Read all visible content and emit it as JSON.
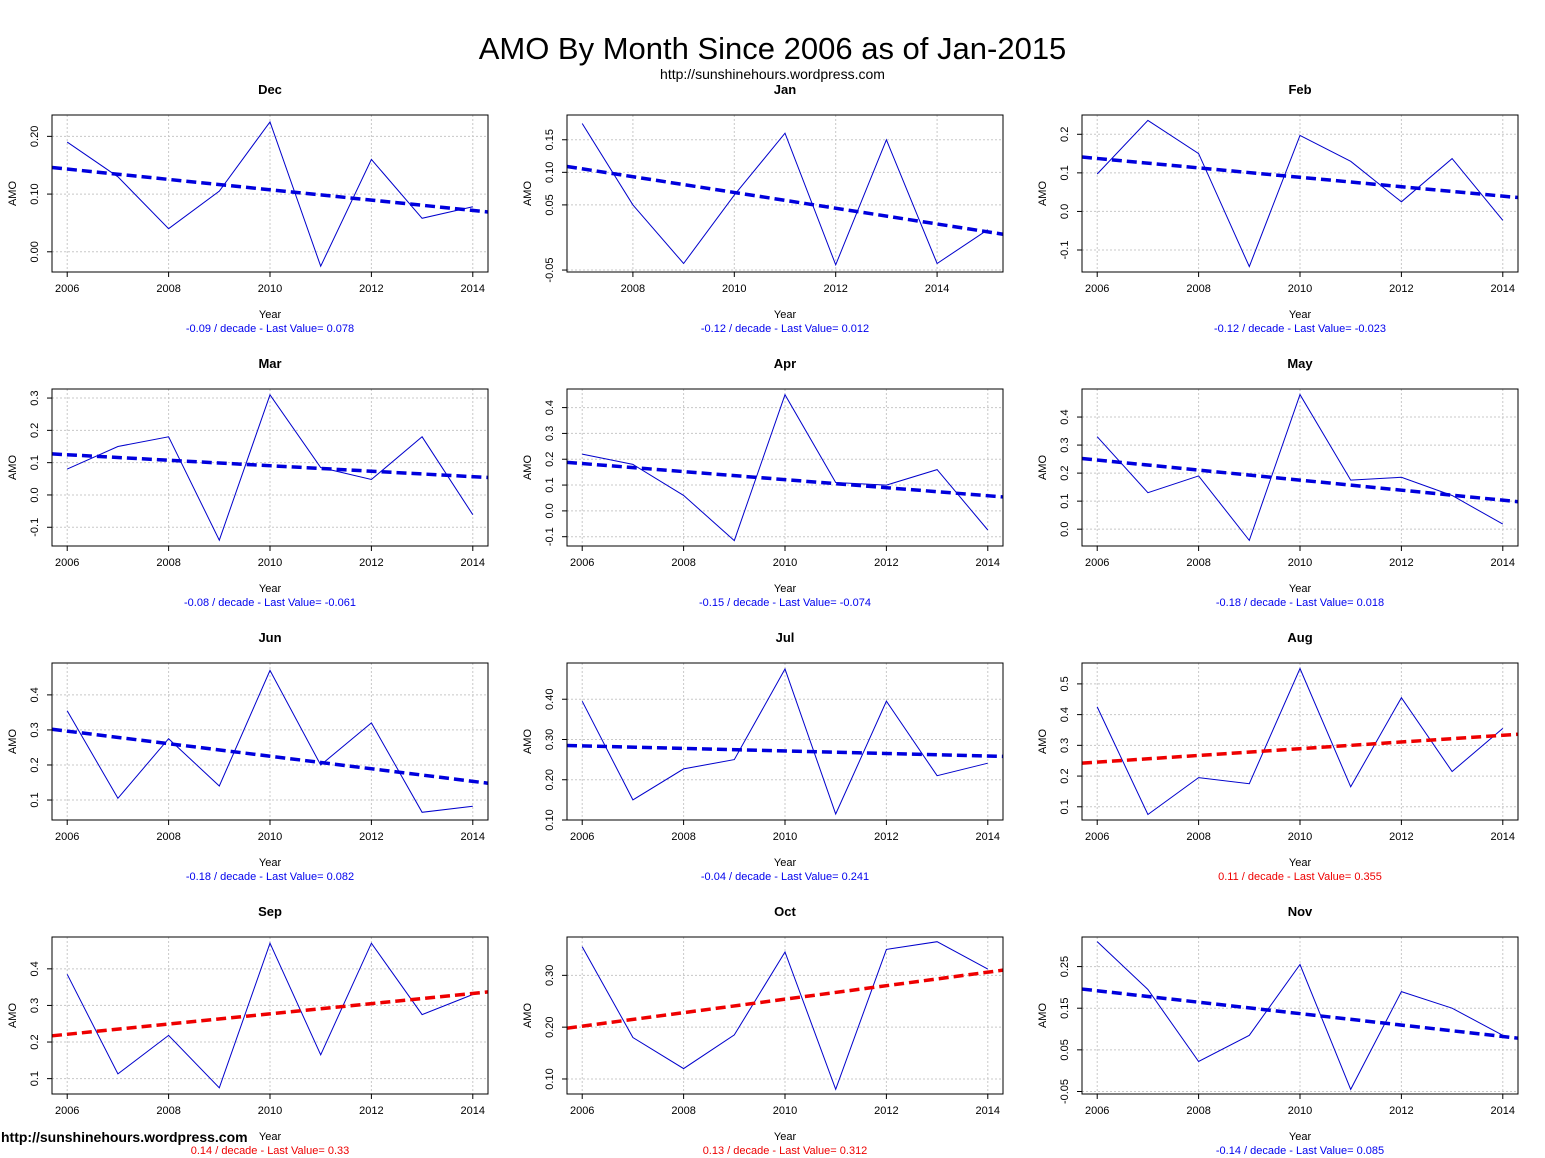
{
  "title": "AMO By Month Since 2006 as of Jan-2015",
  "subtitle": "http://sunshinehours.wordpress.com",
  "watermark": "http://sunshinehours.wordpress.com",
  "colors": {
    "series": "#0000cc",
    "trend_down": "#0000dd",
    "trend_up": "#ee0000",
    "grid": "#c8c8c8",
    "caption_down": "#0000ee",
    "caption_up": "#ee0000"
  },
  "chart_data": [
    {
      "type": "line",
      "title": "Dec",
      "xlabel": "Year",
      "ylabel": "AMO",
      "x": [
        2006,
        2007,
        2008,
        2009,
        2010,
        2011,
        2012,
        2013,
        2014
      ],
      "y": [
        0.19,
        0.13,
        0.04,
        0.105,
        0.225,
        -0.025,
        0.16,
        0.058,
        0.078
      ],
      "trend": {
        "x": [
          2005.7,
          2014.3
        ],
        "y": [
          0.146,
          0.069
        ],
        "color": "down"
      },
      "xlim": [
        2005.7,
        2014.3
      ],
      "ylim": [
        -0.035,
        0.237
      ],
      "xticks": [
        2006,
        2008,
        2010,
        2012,
        2014
      ],
      "xtick_labels": [
        "2006",
        "2008",
        "2010",
        "2012",
        "2014"
      ],
      "yticks": [
        0.0,
        0.1,
        0.2
      ],
      "ytick_labels": [
        "0.00",
        "0.10",
        "0.20"
      ],
      "grid": true,
      "caption": "-0.09  / decade  - Last Value= 0.078",
      "caption_color": "down"
    },
    {
      "type": "line",
      "title": "Jan",
      "xlabel": "Year",
      "ylabel": "AMO",
      "x": [
        2007,
        2008,
        2009,
        2010,
        2011,
        2012,
        2013,
        2014,
        2015
      ],
      "y": [
        0.175,
        0.05,
        -0.04,
        0.065,
        0.16,
        -0.042,
        0.15,
        -0.04,
        0.012
      ],
      "trend": {
        "x": [
          2006.7,
          2015.3
        ],
        "y": [
          0.109,
          0.005
        ],
        "color": "down"
      },
      "xlim": [
        2006.7,
        2015.3
      ],
      "ylim": [
        -0.053,
        0.188
      ],
      "xticks": [
        2008,
        2010,
        2012,
        2014
      ],
      "xtick_labels": [
        "2008",
        "2010",
        "2012",
        "2014"
      ],
      "yticks": [
        -0.05,
        0.05,
        0.1,
        0.15
      ],
      "ytick_labels": [
        "-0.05",
        "0.05",
        "0.10",
        "0.15"
      ],
      "grid": true,
      "caption": "-0.12  / decade  - Last Value= 0.012",
      "caption_color": "down"
    },
    {
      "type": "line",
      "title": "Feb",
      "xlabel": "Year",
      "ylabel": "AMO",
      "x": [
        2006,
        2007,
        2008,
        2009,
        2010,
        2011,
        2012,
        2013,
        2014
      ],
      "y": [
        0.097,
        0.236,
        0.15,
        -0.143,
        0.197,
        0.13,
        0.025,
        0.137,
        -0.023
      ],
      "trend": {
        "x": [
          2005.7,
          2014.3
        ],
        "y": [
          0.141,
          0.036
        ],
        "color": "down"
      },
      "xlim": [
        2005.7,
        2014.3
      ],
      "ylim": [
        -0.157,
        0.25
      ],
      "xticks": [
        2006,
        2008,
        2010,
        2012,
        2014
      ],
      "xtick_labels": [
        "2006",
        "2008",
        "2010",
        "2012",
        "2014"
      ],
      "yticks": [
        -0.1,
        0.0,
        0.1,
        0.2
      ],
      "ytick_labels": [
        "-0.1",
        "0.0",
        "0.1",
        "0.2"
      ],
      "grid": true,
      "caption": "-0.12  / decade  - Last Value= -0.023",
      "caption_color": "down"
    },
    {
      "type": "line",
      "title": "Mar",
      "xlabel": "Year",
      "ylabel": "AMO",
      "x": [
        2006,
        2007,
        2008,
        2009,
        2010,
        2011,
        2012,
        2013,
        2014
      ],
      "y": [
        0.08,
        0.15,
        0.18,
        -0.14,
        0.31,
        0.085,
        0.048,
        0.18,
        -0.061
      ],
      "trend": {
        "x": [
          2005.7,
          2014.3
        ],
        "y": [
          0.127,
          0.054
        ],
        "color": "down"
      },
      "xlim": [
        2005.7,
        2014.3
      ],
      "ylim": [
        -0.158,
        0.328
      ],
      "xticks": [
        2006,
        2008,
        2010,
        2012,
        2014
      ],
      "xtick_labels": [
        "2006",
        "2008",
        "2010",
        "2012",
        "2014"
      ],
      "yticks": [
        -0.1,
        0.0,
        0.1,
        0.2,
        0.3
      ],
      "ytick_labels": [
        "-0.1",
        "0.0",
        "0.1",
        "0.2",
        "0.3"
      ],
      "grid": true,
      "caption": "-0.08  / decade  - Last Value= -0.061",
      "caption_color": "down"
    },
    {
      "type": "line",
      "title": "Apr",
      "xlabel": "Year",
      "ylabel": "AMO",
      "x": [
        2006,
        2007,
        2008,
        2009,
        2010,
        2011,
        2012,
        2013,
        2014
      ],
      "y": [
        0.22,
        0.18,
        0.06,
        -0.115,
        0.45,
        0.11,
        0.1,
        0.16,
        -0.074
      ],
      "trend": {
        "x": [
          2005.7,
          2014.3
        ],
        "y": [
          0.188,
          0.054
        ],
        "color": "down"
      },
      "xlim": [
        2005.7,
        2014.3
      ],
      "ylim": [
        -0.136,
        0.472
      ],
      "xticks": [
        2006,
        2008,
        2010,
        2012,
        2014
      ],
      "xtick_labels": [
        "2006",
        "2008",
        "2010",
        "2012",
        "2014"
      ],
      "yticks": [
        -0.1,
        0.0,
        0.1,
        0.2,
        0.3,
        0.4
      ],
      "ytick_labels": [
        "-0.1",
        "0.0",
        "0.1",
        "0.2",
        "0.3",
        "0.4"
      ],
      "grid": true,
      "caption": "-0.15  / decade  - Last Value= -0.074",
      "caption_color": "down"
    },
    {
      "type": "line",
      "title": "May",
      "xlabel": "Year",
      "ylabel": "AMO",
      "x": [
        2006,
        2007,
        2008,
        2009,
        2010,
        2011,
        2012,
        2013,
        2014
      ],
      "y": [
        0.33,
        0.13,
        0.19,
        -0.04,
        0.48,
        0.175,
        0.185,
        0.12,
        0.018
      ],
      "trend": {
        "x": [
          2005.7,
          2014.3
        ],
        "y": [
          0.252,
          0.098
        ],
        "color": "down"
      },
      "xlim": [
        2005.7,
        2014.3
      ],
      "ylim": [
        -0.06,
        0.5
      ],
      "xticks": [
        2006,
        2008,
        2010,
        2012,
        2014
      ],
      "xtick_labels": [
        "2006",
        "2008",
        "2010",
        "2012",
        "2014"
      ],
      "yticks": [
        0.0,
        0.1,
        0.2,
        0.3,
        0.4
      ],
      "ytick_labels": [
        "0.0",
        "0.1",
        "0.2",
        "0.3",
        "0.4"
      ],
      "grid": true,
      "caption": "-0.18  / decade  - Last Value= 0.018",
      "caption_color": "down"
    },
    {
      "type": "line",
      "title": "Jun",
      "xlabel": "Year",
      "ylabel": "AMO",
      "x": [
        2006,
        2007,
        2008,
        2009,
        2010,
        2011,
        2012,
        2013,
        2014
      ],
      "y": [
        0.355,
        0.105,
        0.275,
        0.14,
        0.47,
        0.2,
        0.32,
        0.065,
        0.082
      ],
      "trend": {
        "x": [
          2005.7,
          2014.3
        ],
        "y": [
          0.302,
          0.148
        ],
        "color": "down"
      },
      "xlim": [
        2005.7,
        2014.3
      ],
      "ylim": [
        0.043,
        0.491
      ],
      "xticks": [
        2006,
        2008,
        2010,
        2012,
        2014
      ],
      "xtick_labels": [
        "2006",
        "2008",
        "2010",
        "2012",
        "2014"
      ],
      "yticks": [
        0.1,
        0.2,
        0.3,
        0.4
      ],
      "ytick_labels": [
        "0.1",
        "0.2",
        "0.3",
        "0.4"
      ],
      "grid": true,
      "caption": "-0.18  / decade  - Last Value= 0.082",
      "caption_color": "down"
    },
    {
      "type": "line",
      "title": "Jul",
      "xlabel": "Year",
      "ylabel": "AMO",
      "x": [
        2006,
        2007,
        2008,
        2009,
        2010,
        2011,
        2012,
        2013,
        2014
      ],
      "y": [
        0.395,
        0.15,
        0.227,
        0.25,
        0.475,
        0.115,
        0.395,
        0.21,
        0.241
      ],
      "trend": {
        "x": [
          2005.7,
          2014.3
        ],
        "y": [
          0.285,
          0.258
        ],
        "color": "down"
      },
      "xlim": [
        2005.7,
        2014.3
      ],
      "ylim": [
        0.1,
        0.49
      ],
      "xticks": [
        2006,
        2008,
        2010,
        2012,
        2014
      ],
      "xtick_labels": [
        "2006",
        "2008",
        "2010",
        "2012",
        "2014"
      ],
      "yticks": [
        0.1,
        0.2,
        0.3,
        0.4
      ],
      "ytick_labels": [
        "0.10",
        "0.20",
        "0.30",
        "0.40"
      ],
      "grid": true,
      "caption": "-0.04  / decade  - Last Value= 0.241",
      "caption_color": "down"
    },
    {
      "type": "line",
      "title": "Aug",
      "xlabel": "Year",
      "ylabel": "AMO",
      "x": [
        2006,
        2007,
        2008,
        2009,
        2010,
        2011,
        2012,
        2013,
        2014
      ],
      "y": [
        0.425,
        0.075,
        0.195,
        0.175,
        0.55,
        0.165,
        0.455,
        0.215,
        0.355
      ],
      "trend": {
        "x": [
          2005.7,
          2014.3
        ],
        "y": [
          0.242,
          0.336
        ],
        "color": "up"
      },
      "xlim": [
        2005.7,
        2014.3
      ],
      "ylim": [
        0.057,
        0.568
      ],
      "xticks": [
        2006,
        2008,
        2010,
        2012,
        2014
      ],
      "xtick_labels": [
        "2006",
        "2008",
        "2010",
        "2012",
        "2014"
      ],
      "yticks": [
        0.1,
        0.2,
        0.3,
        0.4,
        0.5
      ],
      "ytick_labels": [
        "0.1",
        "0.2",
        "0.3",
        "0.4",
        "0.5"
      ],
      "grid": true,
      "caption": "0.11  / decade  - Last Value= 0.355",
      "caption_color": "up"
    },
    {
      "type": "line",
      "title": "Sep",
      "xlabel": "Year",
      "ylabel": "AMO",
      "x": [
        2006,
        2007,
        2008,
        2009,
        2010,
        2011,
        2012,
        2013,
        2014
      ],
      "y": [
        0.385,
        0.113,
        0.218,
        0.075,
        0.47,
        0.165,
        0.47,
        0.275,
        0.33
      ],
      "trend": {
        "x": [
          2005.7,
          2014.3
        ],
        "y": [
          0.217,
          0.337
        ],
        "color": "up"
      },
      "xlim": [
        2005.7,
        2014.3
      ],
      "ylim": [
        0.058,
        0.487
      ],
      "xticks": [
        2006,
        2008,
        2010,
        2012,
        2014
      ],
      "xtick_labels": [
        "2006",
        "2008",
        "2010",
        "2012",
        "2014"
      ],
      "yticks": [
        0.1,
        0.2,
        0.3,
        0.4
      ],
      "ytick_labels": [
        "0.1",
        "0.2",
        "0.3",
        "0.4"
      ],
      "grid": true,
      "caption": "0.14  / decade  - Last Value= 0.33",
      "caption_color": "up"
    },
    {
      "type": "line",
      "title": "Oct",
      "xlabel": "Year",
      "ylabel": "AMO",
      "x": [
        2006,
        2007,
        2008,
        2009,
        2010,
        2011,
        2012,
        2013,
        2014
      ],
      "y": [
        0.355,
        0.18,
        0.12,
        0.185,
        0.345,
        0.08,
        0.35,
        0.365,
        0.312
      ],
      "trend": {
        "x": [
          2005.7,
          2014.3
        ],
        "y": [
          0.198,
          0.31
        ],
        "color": "up"
      },
      "xlim": [
        2005.7,
        2014.3
      ],
      "ylim": [
        0.071,
        0.374
      ],
      "xticks": [
        2006,
        2008,
        2010,
        2012,
        2014
      ],
      "xtick_labels": [
        "2006",
        "2008",
        "2010",
        "2012",
        "2014"
      ],
      "yticks": [
        0.1,
        0.2,
        0.3
      ],
      "ytick_labels": [
        "0.10",
        "0.20",
        "0.30"
      ],
      "grid": true,
      "caption": "0.13  / decade  - Last Value= 0.312",
      "caption_color": "up"
    },
    {
      "type": "line",
      "title": "Nov",
      "xlabel": "Year",
      "ylabel": "AMO",
      "x": [
        2006,
        2007,
        2008,
        2009,
        2010,
        2011,
        2012,
        2013,
        2014
      ],
      "y": [
        0.31,
        0.195,
        0.022,
        0.085,
        0.255,
        -0.045,
        0.19,
        0.15,
        0.085
      ],
      "trend": {
        "x": [
          2005.7,
          2014.3
        ],
        "y": [
          0.196,
          0.078
        ],
        "color": "down"
      },
      "xlim": [
        2005.7,
        2014.3
      ],
      "ylim": [
        -0.056,
        0.321
      ],
      "xticks": [
        2006,
        2008,
        2010,
        2012,
        2014
      ],
      "xtick_labels": [
        "2006",
        "2008",
        "2010",
        "2012",
        "2014"
      ],
      "yticks": [
        -0.05,
        0.05,
        0.15,
        0.25
      ],
      "ytick_labels": [
        "-0.05",
        "0.05",
        "0.15",
        "0.25"
      ],
      "grid": true,
      "caption": "-0.14  / decade  - Last Value= 0.085",
      "caption_color": "down"
    }
  ]
}
